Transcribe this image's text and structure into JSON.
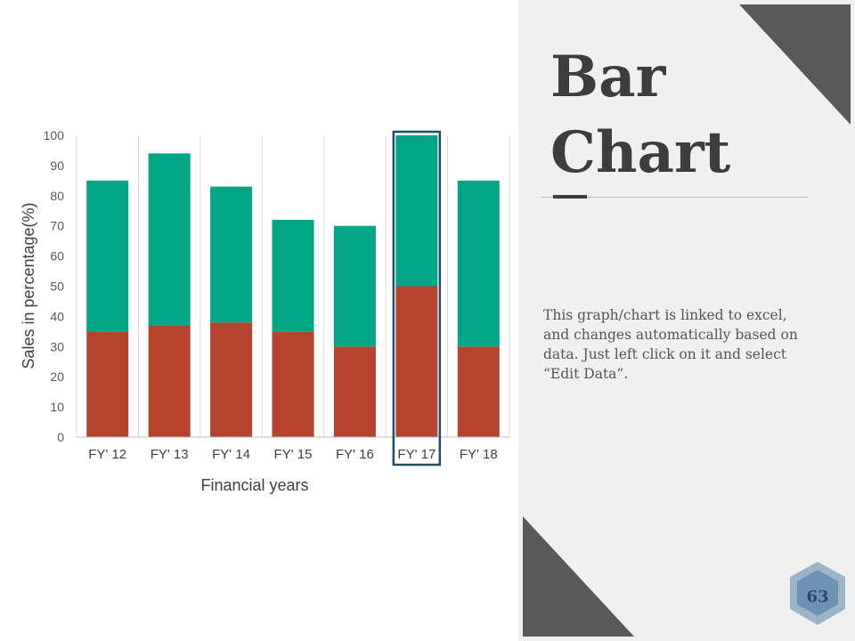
{
  "slide": {
    "title_line1": "Bar",
    "title_line2": "Chart",
    "description": "This graph/chart is linked to excel, and changes automatically based on data. Just left click on it and select “Edit Data”.",
    "page_number": "63"
  },
  "colors": {
    "series_bottom": "#b5432e",
    "series_top": "#00a685",
    "highlight_border": "#1f4e68",
    "dark_triangle": "#595959",
    "hexagon_outer": "#9cb4c9",
    "hexagon_inner": "#6d93b4"
  },
  "chart_data": {
    "type": "bar",
    "stacked": true,
    "categories": [
      "FY' 12",
      "FY' 13",
      "FY' 14",
      "FY' 15",
      "FY' 16",
      "FY' 17",
      "FY' 18"
    ],
    "series": [
      {
        "values": [
          35,
          37,
          38,
          35,
          30,
          50,
          30
        ]
      },
      {
        "values": [
          50,
          57,
          45,
          37,
          40,
          50,
          55
        ]
      }
    ],
    "xlabel": "Financial years",
    "ylabel": "Sales in percentage(%)",
    "ylim": [
      0,
      100
    ],
    "yticks": [
      0,
      10,
      20,
      30,
      40,
      50,
      60,
      70,
      80,
      90,
      100
    ],
    "grid": "vertical",
    "highlighted_category": "FY' 17"
  }
}
